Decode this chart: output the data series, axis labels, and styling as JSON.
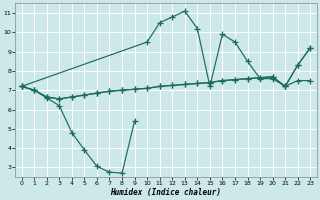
{
  "xlabel": "Humidex (Indice chaleur)",
  "bg_color": "#cce8e8",
  "grid_color": "#ffffff",
  "line_color": "#1a6b5a",
  "xlim": [
    -0.5,
    23.5
  ],
  "ylim": [
    2.5,
    11.5
  ],
  "xticks": [
    0,
    1,
    2,
    3,
    4,
    5,
    6,
    7,
    8,
    9,
    10,
    11,
    12,
    13,
    14,
    15,
    16,
    17,
    18,
    19,
    20,
    21,
    22,
    23
  ],
  "yticks": [
    3,
    4,
    5,
    6,
    7,
    8,
    9,
    10,
    11
  ],
  "line_dip_x": [
    0,
    1,
    2,
    3,
    4,
    5,
    6,
    7,
    8,
    9
  ],
  "line_dip_y": [
    7.2,
    7.0,
    6.6,
    6.2,
    4.8,
    3.9,
    3.05,
    2.75,
    2.7,
    5.4
  ],
  "line_arch_x": [
    0,
    10,
    11,
    12,
    13,
    14,
    15,
    16,
    17,
    18,
    19,
    20,
    21,
    22,
    23
  ],
  "line_arch_y": [
    7.2,
    9.5,
    10.5,
    10.8,
    11.1,
    10.2,
    7.2,
    9.9,
    9.5,
    8.5,
    7.6,
    7.6,
    7.2,
    8.3,
    9.2
  ],
  "line_flat1_x": [
    0,
    1,
    2,
    3,
    4,
    5,
    6,
    7,
    8,
    9,
    10,
    11,
    12,
    13,
    14,
    15,
    16,
    17,
    18,
    19,
    20,
    21,
    22,
    23
  ],
  "line_flat1_y": [
    7.2,
    7.0,
    6.65,
    6.55,
    6.65,
    6.75,
    6.85,
    6.95,
    7.0,
    7.05,
    7.1,
    7.2,
    7.25,
    7.3,
    7.35,
    7.4,
    7.5,
    7.55,
    7.6,
    7.65,
    7.7,
    7.2,
    7.5,
    7.5
  ],
  "line_flat2_x": [
    0,
    1,
    2,
    3,
    4,
    5,
    6,
    7,
    8,
    9,
    10,
    11,
    12,
    13,
    14,
    15,
    16,
    17,
    18,
    19,
    20,
    21,
    22,
    23
  ],
  "line_flat2_y": [
    7.2,
    7.0,
    6.65,
    6.55,
    6.65,
    6.75,
    6.85,
    6.95,
    7.0,
    7.05,
    7.1,
    7.2,
    7.25,
    7.3,
    7.35,
    7.4,
    7.5,
    7.55,
    7.6,
    7.65,
    7.7,
    7.2,
    8.3,
    9.2
  ],
  "marker_size": 4
}
